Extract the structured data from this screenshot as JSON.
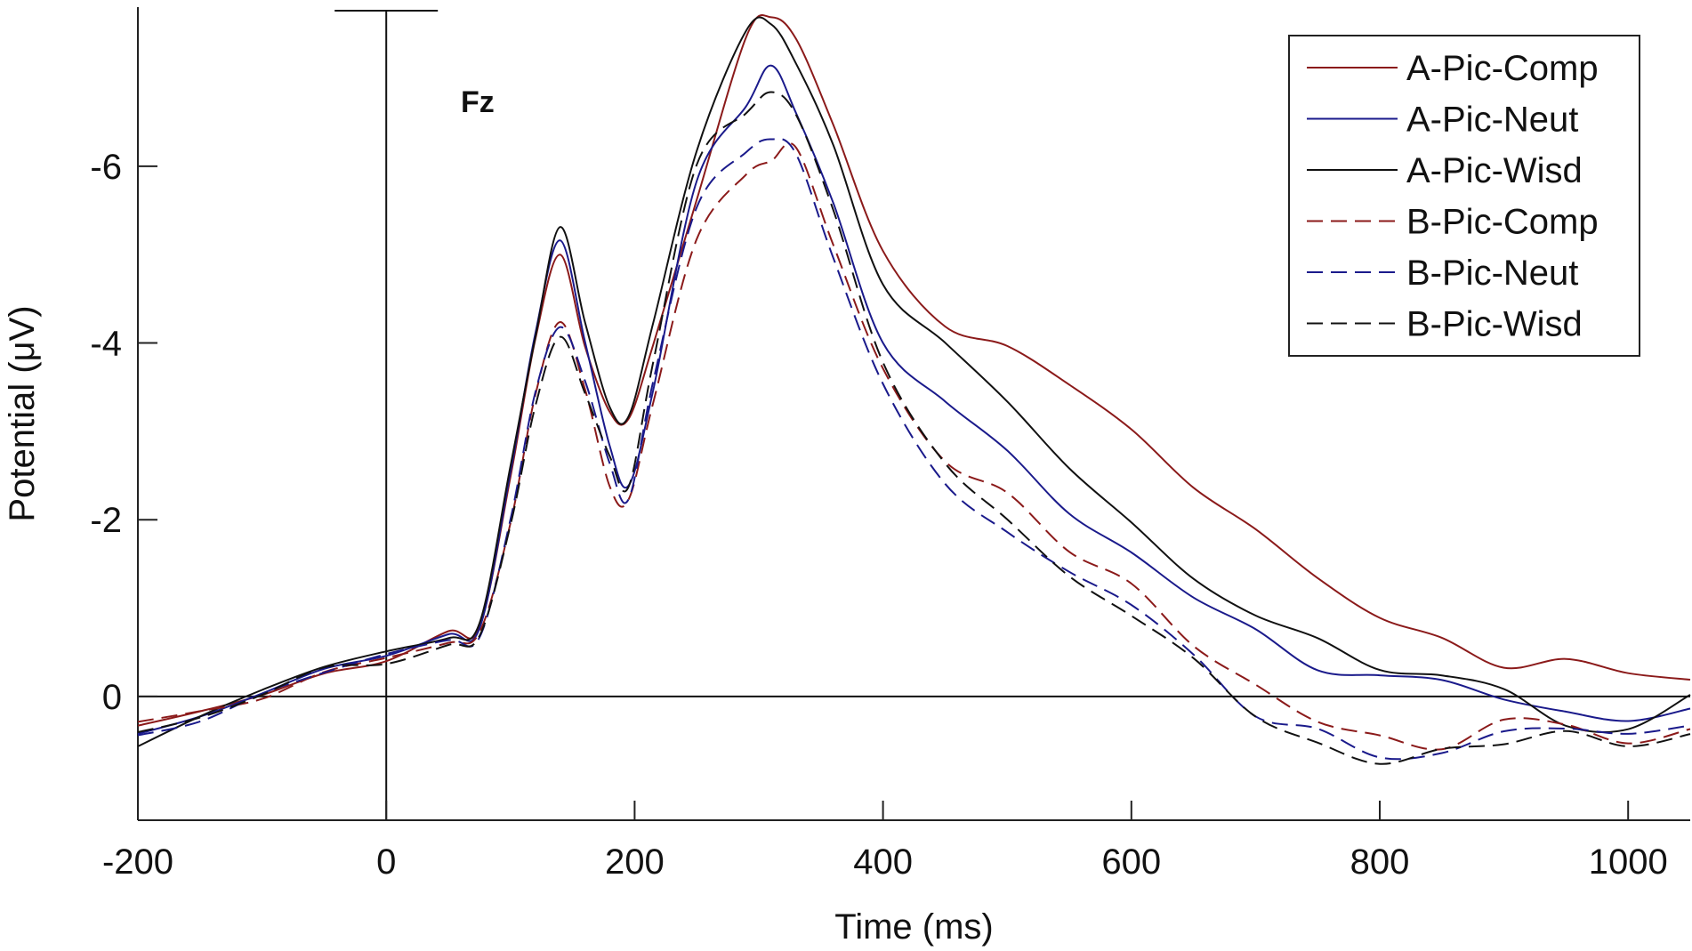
{
  "chart_data": {
    "type": "line",
    "title": "",
    "channel_label": "Fz",
    "xlabel": "Time (ms)",
    "ylabel": "Potential (μV)",
    "xlim": [
      -200,
      1050
    ],
    "ylim": [
      1.4,
      -7.8
    ],
    "y_inverted": true,
    "xticks": [
      -200,
      0,
      200,
      400,
      600,
      800,
      1000
    ],
    "xtick_labels": [
      "-200",
      "0",
      "200",
      "400",
      "600",
      "800",
      "1000"
    ],
    "yticks": [
      -6,
      -4,
      -2,
      0
    ],
    "ytick_labels": [
      "-6",
      "-4",
      "-2",
      "0"
    ],
    "legend_position": "top-right",
    "x": [
      -200,
      -150,
      -100,
      -50,
      0,
      50,
      75,
      100,
      120,
      140,
      160,
      180,
      195,
      215,
      250,
      290,
      310,
      330,
      360,
      400,
      450,
      500,
      550,
      600,
      650,
      700,
      750,
      800,
      850,
      900,
      950,
      1000,
      1050
    ],
    "series": [
      {
        "name": "A-Pic-Comp",
        "color": "#8b1a1a",
        "dash": "solid",
        "values": [
          0.3,
          0.2,
          0.0,
          -0.3,
          -0.4,
          -0.7,
          -0.8,
          -2.5,
          -4.0,
          -5.0,
          -4.0,
          -3.2,
          -3.1,
          -4.0,
          -5.6,
          -7.5,
          -7.7,
          -7.4,
          -6.5,
          -5.0,
          -4.2,
          -4.0,
          -3.5,
          -3.0,
          -2.4,
          -1.9,
          -1.3,
          -0.9,
          -0.7,
          -0.3,
          -0.4,
          -0.3,
          -0.2
        ]
      },
      {
        "name": "A-Pic-Neut",
        "color": "#1a1a8b",
        "dash": "solid",
        "values": [
          0.4,
          0.2,
          0.0,
          -0.3,
          -0.5,
          -0.7,
          -0.8,
          -2.5,
          -4.1,
          -5.2,
          -4.0,
          -2.8,
          -2.4,
          -3.5,
          -5.8,
          -6.7,
          -7.1,
          -6.6,
          -5.6,
          -4.0,
          -3.3,
          -2.8,
          -2.1,
          -1.6,
          -1.1,
          -0.8,
          -0.3,
          -0.2,
          -0.2,
          -0.0,
          0.2,
          0.3,
          0.1
        ]
      },
      {
        "name": "A-Pic-Wisd",
        "color": "#111111",
        "dash": "solid",
        "values": [
          0.6,
          0.2,
          -0.1,
          -0.3,
          -0.5,
          -0.7,
          -0.8,
          -2.6,
          -4.1,
          -5.3,
          -4.2,
          -3.3,
          -3.2,
          -4.2,
          -6.2,
          -7.5,
          -7.6,
          -7.2,
          -6.2,
          -4.7,
          -4.0,
          -3.3,
          -2.6,
          -2.0,
          -1.3,
          -0.9,
          -0.7,
          -0.3,
          -0.2,
          -0.1,
          0.3,
          0.4,
          0.0
        ]
      },
      {
        "name": "B-Pic-Comp",
        "color": "#8b1a1a",
        "dash": "dashed",
        "values": [
          0.3,
          0.2,
          0.0,
          -0.3,
          -0.4,
          -0.6,
          -0.7,
          -2.0,
          -3.4,
          -4.2,
          -3.5,
          -2.4,
          -2.2,
          -3.3,
          -5.2,
          -5.9,
          -6.1,
          -6.2,
          -5.1,
          -3.7,
          -2.7,
          -2.3,
          -1.6,
          -1.3,
          -0.6,
          -0.1,
          0.3,
          0.4,
          0.6,
          0.3,
          0.3,
          0.5,
          0.4
        ]
      },
      {
        "name": "B-Pic-Neut",
        "color": "#1a1a8b",
        "dash": "dashed",
        "values": [
          0.4,
          0.3,
          0.0,
          -0.3,
          -0.5,
          -0.6,
          -0.7,
          -2.0,
          -3.4,
          -4.2,
          -3.6,
          -2.6,
          -2.2,
          -3.6,
          -5.5,
          -6.2,
          -6.3,
          -6.1,
          -5.0,
          -3.5,
          -2.4,
          -1.9,
          -1.4,
          -1.0,
          -0.5,
          0.2,
          0.4,
          0.7,
          0.6,
          0.4,
          0.4,
          0.4,
          0.3
        ]
      },
      {
        "name": "B-Pic-Wisd",
        "color": "#111111",
        "dash": "dashed",
        "values": [
          0.4,
          0.2,
          0.0,
          -0.3,
          -0.4,
          -0.6,
          -0.7,
          -1.9,
          -3.3,
          -4.1,
          -3.4,
          -2.7,
          -2.4,
          -3.8,
          -6.0,
          -6.6,
          -6.8,
          -6.6,
          -5.5,
          -3.8,
          -2.6,
          -2.0,
          -1.4,
          -0.9,
          -0.4,
          0.2,
          0.5,
          0.8,
          0.6,
          0.5,
          0.4,
          0.6,
          0.4
        ]
      }
    ]
  }
}
